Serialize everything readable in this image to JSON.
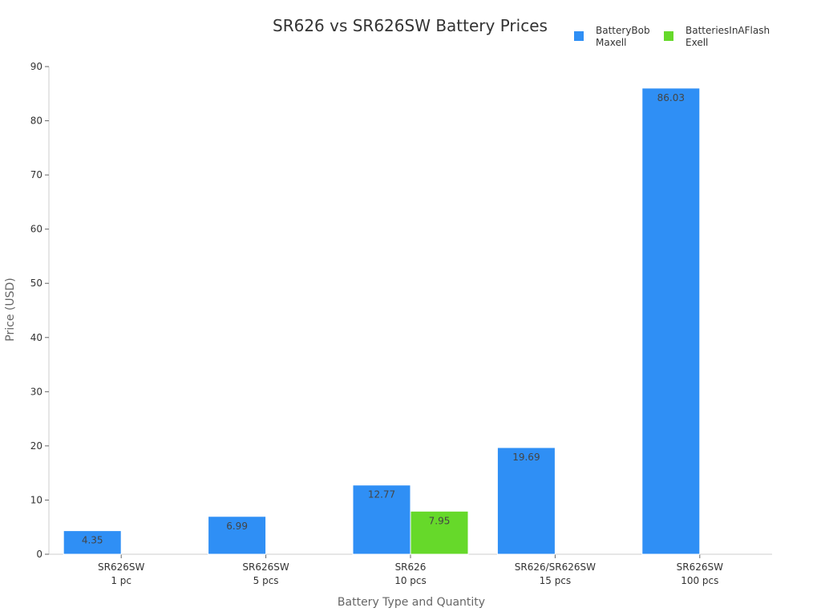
{
  "chart_data": {
    "type": "bar",
    "title": "SR626 vs SR626SW Battery Prices",
    "xlabel": "Battery Type and Quantity",
    "ylabel": "Price (USD)",
    "ylim": [
      0,
      90
    ],
    "yticks": [
      0,
      10,
      20,
      30,
      40,
      50,
      60,
      70,
      80,
      90
    ],
    "grid": false,
    "legend_position": "top-right",
    "categories": [
      [
        "SR626SW",
        "1 pc"
      ],
      [
        "SR626SW",
        "5 pcs"
      ],
      [
        "SR626",
        "10 pcs"
      ],
      [
        "SR626/SR626SW",
        "15 pcs"
      ],
      [
        "SR626SW",
        "100 pcs"
      ]
    ],
    "series": [
      {
        "name": "BatteryBob\nMaxell",
        "color": "#2f8ff5",
        "values": [
          4.35,
          6.99,
          12.77,
          19.69,
          86.03
        ]
      },
      {
        "name": "BatteriesInAFlash\nExell",
        "color": "#66d92a",
        "values": [
          null,
          null,
          7.95,
          null,
          null
        ]
      }
    ]
  }
}
